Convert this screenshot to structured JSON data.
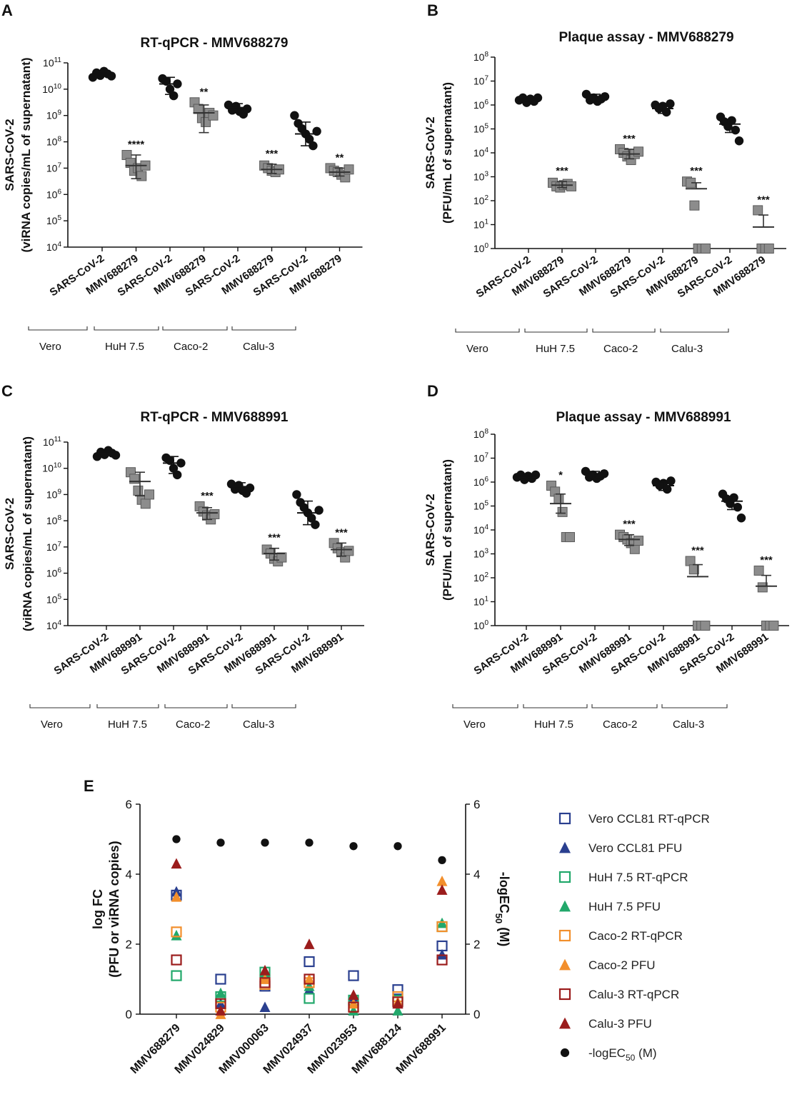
{
  "panels": {
    "A": {
      "letter": "A",
      "title": "RT-qPCR  - MMV688279",
      "ylabel_line1": "SARS-CoV-2",
      "ylabel_line2": "(viRNA copies/mL of supernatant)",
      "xtick_labels": [
        "SARS-CoV-2",
        "MMV688279",
        "SARS-CoV-2",
        "MMV688279",
        "SARS-CoV-2",
        "MMV688279",
        "SARS-CoV-2",
        "MMV688279"
      ],
      "cell_lines": [
        "Vero",
        "HuH 7.5",
        "Caco-2",
        "Calu-3"
      ]
    },
    "B": {
      "letter": "B",
      "title": "Plaque assay - MMV688279",
      "ylabel_line1": "SARS-CoV-2",
      "ylabel_line2": "(PFU/mL of supernatant)",
      "xtick_labels": [
        "SARS-CoV-2",
        "MMV688279",
        "SARS-CoV-2",
        "MMV688279",
        "SARS-CoV-2",
        "MMV688279",
        "SARS-CoV-2",
        "MMV688279"
      ],
      "cell_lines": [
        "Vero",
        "HuH 7.5",
        "Caco-2",
        "Calu-3"
      ]
    },
    "C": {
      "letter": "C",
      "title": "RT-qPCR  - MMV688991",
      "ylabel_line1": "SARS-CoV-2",
      "ylabel_line2": "(viRNA copies/mL of supernatant)",
      "xtick_labels": [
        "SARS-CoV-2",
        "MMV688991",
        "SARS-CoV-2",
        "MMV688991",
        "SARS-CoV-2",
        "MMV688991",
        "SARS-CoV-2",
        "MMV688991"
      ],
      "cell_lines": [
        "Vero",
        "HuH 7.5",
        "Caco-2",
        "Calu-3"
      ]
    },
    "D": {
      "letter": "D",
      "title": "Plaque assay - MMV688991",
      "ylabel_line1": "SARS-CoV-2",
      "ylabel_line2": "(PFU/mL of supernatant)",
      "xtick_labels": [
        "SARS-CoV-2",
        "MMV688991",
        "SARS-CoV-2",
        "MMV688991",
        "SARS-CoV-2",
        "MMV688991",
        "SARS-CoV-2",
        "MMV688991"
      ],
      "cell_lines": [
        "Vero",
        "HuH 7.5",
        "Caco-2",
        "Calu-3"
      ]
    },
    "E": {
      "letter": "E",
      "ylabel_left_line1": "log FC",
      "ylabel_left_line2": "(PFU or viRNA copies)",
      "ylabel_right": "-logEC",
      "ylabel_right_sub": "50",
      "ylabel_right_unit": "(M)"
    }
  },
  "colors": {
    "black": "#111111",
    "gray_fill": "#8c8c8c",
    "gray_stroke": "#5a5a5a",
    "vero": "#2a3f8f",
    "huh": "#22a86b",
    "caco": "#f28f2c",
    "calu": "#9b1c1c"
  },
  "chart_data": [
    {
      "panel": "A",
      "type": "scatter",
      "title": "RT-qPCR  - MMV688279",
      "ylabel": "SARS-CoV-2 (viRNA copies/mL of supernatant)",
      "yscale": "log10",
      "ylim": [
        10000,
        100000000000
      ],
      "yticks": [
        "10^4",
        "10^5",
        "10^6",
        "10^7",
        "10^8",
        "10^9",
        "10^10",
        "10^11"
      ],
      "categories": [
        "SARS-CoV-2",
        "MMV688279",
        "SARS-CoV-2",
        "MMV688279",
        "SARS-CoV-2",
        "MMV688279",
        "SARS-CoV-2",
        "MMV688279"
      ],
      "groups": [
        "Vero",
        "HuH 7.5",
        "Caco-2",
        "Calu-3"
      ],
      "series": [
        {
          "name": "Vero SARS-CoV-2",
          "marker": "circle",
          "log_values": [
            10.45,
            10.62,
            10.52,
            10.68,
            10.58,
            10.5
          ],
          "mean_log": 10.57,
          "sd_log": [
            10.5,
            10.66
          ],
          "significance": ""
        },
        {
          "name": "Vero MMV688279",
          "marker": "square",
          "log_values": [
            7.5,
            7.2,
            6.9,
            7.0,
            6.7,
            7.1
          ],
          "mean_log": 7.1,
          "sd_log": [
            6.6,
            7.5
          ],
          "significance": "****"
        },
        {
          "name": "HuH 7.5 SARS-CoV-2",
          "marker": "circle",
          "log_values": [
            10.4,
            10.3,
            10.0,
            9.75,
            10.2
          ],
          "mean_log": 10.2,
          "sd_log": [
            9.8,
            10.45
          ],
          "significance": ""
        },
        {
          "name": "HuH 7.5 MMV688279",
          "marker": "square",
          "log_values": [
            9.5,
            9.25,
            8.9,
            8.75,
            9.1,
            9.0
          ],
          "mean_log": 9.1,
          "sd_log": [
            8.35,
            9.4
          ],
          "significance": "**"
        },
        {
          "name": "Caco-2 SARS-CoV-2",
          "marker": "circle",
          "log_values": [
            9.4,
            9.2,
            9.35,
            9.15,
            9.05,
            9.25
          ],
          "mean_log": 9.3,
          "sd_log": [
            9.1,
            9.45
          ],
          "significance": ""
        },
        {
          "name": "Caco-2 MMV688279",
          "marker": "square",
          "log_values": [
            7.1,
            7.0,
            6.9,
            6.85,
            6.95
          ],
          "mean_log": 6.95,
          "sd_log": [
            6.8,
            7.15
          ],
          "significance": "***"
        },
        {
          "name": "Calu-3 SARS-CoV-2",
          "marker": "circle",
          "log_values": [
            9.0,
            8.7,
            8.5,
            8.3,
            8.1,
            7.85,
            8.4
          ],
          "mean_log": 8.3,
          "sd_log": [
            7.85,
            8.75
          ],
          "significance": ""
        },
        {
          "name": "Calu-3 MMV688279",
          "marker": "square",
          "log_values": [
            7.0,
            6.9,
            6.85,
            6.75,
            6.65,
            6.95
          ],
          "mean_log": 6.85,
          "sd_log": [
            6.7,
            7.0
          ],
          "significance": "**"
        }
      ]
    },
    {
      "panel": "B",
      "type": "scatter",
      "title": "Plaque assay - MMV688279",
      "ylabel": "SARS-CoV-2 (PFU/mL of supernatant)",
      "yscale": "log10",
      "ylim": [
        1,
        100000000
      ],
      "yticks": [
        "10^0",
        "10^1",
        "10^2",
        "10^3",
        "10^4",
        "10^5",
        "10^6",
        "10^7",
        "10^8"
      ],
      "categories": [
        "SARS-CoV-2",
        "MMV688279",
        "SARS-CoV-2",
        "MMV688279",
        "SARS-CoV-2",
        "MMV688279",
        "SARS-CoV-2",
        "MMV688279"
      ],
      "groups": [
        "Vero",
        "HuH 7.5",
        "Caco-2",
        "Calu-3"
      ],
      "series": [
        {
          "name": "Vero SARS-CoV-2",
          "marker": "circle",
          "log_values": [
            6.2,
            6.3,
            6.1,
            6.25,
            6.15,
            6.3
          ],
          "mean_log": 6.25,
          "sd_log": [
            6.15,
            6.35
          ],
          "significance": ""
        },
        {
          "name": "Vero MMV688279",
          "marker": "square",
          "log_values": [
            2.75,
            2.6,
            2.55,
            2.65,
            2.7,
            2.6
          ],
          "mean_log": 2.65,
          "sd_log": [
            2.55,
            2.8
          ],
          "significance": "***"
        },
        {
          "name": "HuH 7.5 SARS-CoV-2",
          "marker": "circle",
          "log_values": [
            6.45,
            6.2,
            6.3,
            6.15,
            6.25,
            6.35
          ],
          "mean_log": 6.3,
          "sd_log": [
            6.15,
            6.45
          ],
          "significance": ""
        },
        {
          "name": "HuH 7.5 MMV688279",
          "marker": "square",
          "log_values": [
            4.15,
            4.0,
            3.85,
            3.7,
            3.95,
            4.05
          ],
          "mean_log": 3.95,
          "sd_log": [
            3.75,
            4.15
          ],
          "significance": "***"
        },
        {
          "name": "Caco-2 SARS-CoV-2",
          "marker": "circle",
          "log_values": [
            6.0,
            5.85,
            5.95,
            5.7,
            6.05
          ],
          "mean_log": 5.85,
          "sd_log": [
            5.65,
            6.0
          ],
          "significance": ""
        },
        {
          "name": "Caco-2 MMV688279",
          "marker": "square",
          "log_values": [
            2.8,
            2.75,
            1.8,
            0,
            0,
            0
          ],
          "mean_log": 2.5,
          "sd_log": [
            2.5,
            2.75
          ],
          "significance": "***"
        },
        {
          "name": "Calu-3 SARS-CoV-2",
          "marker": "circle",
          "log_values": [
            5.5,
            5.3,
            5.1,
            5.35,
            4.95,
            4.5
          ],
          "mean_log": 5.2,
          "sd_log": [
            4.85,
            5.4
          ],
          "significance": ""
        },
        {
          "name": "Calu-3 MMV688279",
          "marker": "square",
          "log_values": [
            1.6,
            0,
            0,
            0
          ],
          "mean_log": 0.9,
          "sd_log": [
            0.9,
            1.4
          ],
          "significance": "***"
        }
      ]
    },
    {
      "panel": "C",
      "type": "scatter",
      "title": "RT-qPCR  - MMV688991",
      "ylabel": "SARS-CoV-2 (viRNA copies/mL of supernatant)",
      "yscale": "log10",
      "ylim": [
        10000,
        100000000000
      ],
      "yticks": [
        "10^4",
        "10^5",
        "10^6",
        "10^7",
        "10^8",
        "10^9",
        "10^10",
        "10^11"
      ],
      "categories": [
        "SARS-CoV-2",
        "MMV688991",
        "SARS-CoV-2",
        "MMV688991",
        "SARS-CoV-2",
        "MMV688991",
        "SARS-CoV-2",
        "MMV688991"
      ],
      "groups": [
        "Vero",
        "HuH 7.5",
        "Caco-2",
        "Calu-3"
      ],
      "series": [
        {
          "name": "Vero SARS-CoV-2",
          "marker": "circle",
          "log_values": [
            10.45,
            10.62,
            10.52,
            10.68,
            10.58,
            10.5
          ],
          "mean_log": 10.57,
          "sd_log": [
            10.5,
            10.66
          ],
          "significance": ""
        },
        {
          "name": "Vero MMV688991",
          "marker": "square",
          "log_values": [
            9.85,
            9.6,
            9.15,
            8.8,
            8.65,
            9.0
          ],
          "mean_log": 9.5,
          "sd_log": [
            8.95,
            9.85
          ],
          "significance": ""
        },
        {
          "name": "HuH 7.5 SARS-CoV-2",
          "marker": "circle",
          "log_values": [
            10.4,
            10.3,
            10.0,
            9.75,
            10.2
          ],
          "mean_log": 10.2,
          "sd_log": [
            9.8,
            10.45
          ],
          "significance": ""
        },
        {
          "name": "HuH 7.5 MMV688991",
          "marker": "square",
          "log_values": [
            8.55,
            8.35,
            8.2,
            8.05,
            8.25
          ],
          "mean_log": 8.3,
          "sd_log": [
            8.05,
            8.5
          ],
          "significance": "***"
        },
        {
          "name": "Caco-2 SARS-CoV-2",
          "marker": "circle",
          "log_values": [
            9.4,
            9.2,
            9.35,
            9.15,
            9.05,
            9.25
          ],
          "mean_log": 9.3,
          "sd_log": [
            9.1,
            9.45
          ],
          "significance": ""
        },
        {
          "name": "Caco-2 MMV688991",
          "marker": "square",
          "log_values": [
            6.9,
            6.75,
            6.55,
            6.45,
            6.6
          ],
          "mean_log": 6.75,
          "sd_log": [
            6.5,
            6.95
          ],
          "significance": "***"
        },
        {
          "name": "Calu-3 SARS-CoV-2",
          "marker": "circle",
          "log_values": [
            9.0,
            8.7,
            8.5,
            8.3,
            8.1,
            7.85,
            8.4
          ],
          "mean_log": 8.3,
          "sd_log": [
            7.85,
            8.75
          ],
          "significance": ""
        },
        {
          "name": "Calu-3 MMV688991",
          "marker": "square",
          "log_values": [
            7.15,
            6.95,
            6.8,
            6.6,
            6.85
          ],
          "mean_log": 6.9,
          "sd_log": [
            6.65,
            7.15
          ],
          "significance": "***"
        }
      ]
    },
    {
      "panel": "D",
      "type": "scatter",
      "title": "Plaque assay - MMV688991",
      "ylabel": "SARS-CoV-2 (PFU/mL of supernatant)",
      "yscale": "log10",
      "ylim": [
        1,
        100000000
      ],
      "yticks": [
        "10^0",
        "10^1",
        "10^2",
        "10^3",
        "10^4",
        "10^5",
        "10^6",
        "10^7",
        "10^8"
      ],
      "categories": [
        "SARS-CoV-2",
        "MMV688991",
        "SARS-CoV-2",
        "MMV688991",
        "SARS-CoV-2",
        "MMV688991",
        "SARS-CoV-2",
        "MMV688991"
      ],
      "groups": [
        "Vero",
        "HuH 7.5",
        "Caco-2",
        "Calu-3"
      ],
      "series": [
        {
          "name": "Vero SARS-CoV-2",
          "marker": "circle",
          "log_values": [
            6.2,
            6.3,
            6.1,
            6.25,
            6.15,
            6.3
          ],
          "mean_log": 6.25,
          "sd_log": [
            6.15,
            6.35
          ],
          "significance": ""
        },
        {
          "name": "Vero MMV688991",
          "marker": "square",
          "log_values": [
            5.85,
            5.6,
            5.3,
            4.75,
            3.7,
            3.7
          ],
          "mean_log": 5.1,
          "sd_log": [
            4.7,
            5.5
          ],
          "significance": "*"
        },
        {
          "name": "HuH 7.5 SARS-CoV-2",
          "marker": "circle",
          "log_values": [
            6.45,
            6.2,
            6.3,
            6.15,
            6.25,
            6.35
          ],
          "mean_log": 6.3,
          "sd_log": [
            6.15,
            6.45
          ],
          "significance": ""
        },
        {
          "name": "HuH 7.5 MMV688991",
          "marker": "square",
          "log_values": [
            3.8,
            3.7,
            3.6,
            3.45,
            3.2,
            3.55
          ],
          "mean_log": 3.6,
          "sd_log": [
            3.35,
            3.8
          ],
          "significance": "***"
        },
        {
          "name": "Caco-2 SARS-CoV-2",
          "marker": "circle",
          "log_values": [
            6.0,
            5.85,
            5.95,
            5.7,
            6.05
          ],
          "mean_log": 5.85,
          "sd_log": [
            5.65,
            6.0
          ],
          "significance": ""
        },
        {
          "name": "Caco-2 MMV688991",
          "marker": "square",
          "log_values": [
            2.7,
            2.35,
            0,
            0,
            0
          ],
          "mean_log": 2.05,
          "sd_log": [
            2.05,
            2.55
          ],
          "significance": "***"
        },
        {
          "name": "Calu-3 SARS-CoV-2",
          "marker": "circle",
          "log_values": [
            5.5,
            5.3,
            5.1,
            5.35,
            4.95,
            4.5
          ],
          "mean_log": 5.2,
          "sd_log": [
            4.85,
            5.4
          ],
          "significance": ""
        },
        {
          "name": "Calu-3 MMV688991",
          "marker": "square",
          "log_values": [
            2.3,
            1.6,
            0,
            0,
            0
          ],
          "mean_log": 1.65,
          "sd_log": [
            1.65,
            2.1
          ],
          "significance": "***"
        }
      ]
    },
    {
      "panel": "E",
      "type": "scatter",
      "xlabel": "",
      "ylabel": "log FC (PFU or viRNA copies)",
      "ylabel_right": "-logEC50 (M)",
      "ylim": [
        0,
        6
      ],
      "ylim_right": [
        0,
        6
      ],
      "yticks": [
        0,
        2,
        4,
        6
      ],
      "categories": [
        "MMV688279",
        "MMV024829",
        "MMV000063",
        "MMV024937",
        "MMV023953",
        "MMV688124",
        "MMV688991"
      ],
      "legend_position": "right",
      "series": [
        {
          "name": "Vero CCL81 RT-qPCR",
          "marker": "open-square",
          "color": "#2a3f8f",
          "values": [
            3.4,
            1.0,
            0.8,
            1.5,
            1.1,
            0.7,
            1.95
          ]
        },
        {
          "name": "Vero CCL81 PFU",
          "marker": "triangle",
          "color": "#2a3f8f",
          "values": [
            3.5,
            0.3,
            0.2,
            0.7,
            0.5,
            0.3,
            1.7
          ]
        },
        {
          "name": "HuH 7.5 RT-qPCR",
          "marker": "open-square",
          "color": "#22a86b",
          "values": [
            1.1,
            0.5,
            1.2,
            0.45,
            0.4,
            0.4,
            2.5
          ]
        },
        {
          "name": "HuH 7.5 PFU",
          "marker": "triangle",
          "color": "#22a86b",
          "values": [
            2.25,
            0.6,
            1.2,
            0.8,
            0.1,
            0.1,
            2.6
          ]
        },
        {
          "name": "Caco-2 RT-qPCR",
          "marker": "open-square",
          "color": "#f28f2c",
          "values": [
            2.35,
            0.2,
            0.85,
            0.9,
            0.2,
            0.5,
            2.5
          ]
        },
        {
          "name": "Caco-2 PFU",
          "marker": "triangle",
          "color": "#f28f2c",
          "values": [
            3.35,
            0.0,
            1.0,
            1.0,
            0.3,
            0.35,
            3.8
          ]
        },
        {
          "name": "Calu-3 RT-qPCR",
          "marker": "open-square",
          "color": "#9b1c1c",
          "values": [
            1.55,
            0.3,
            0.9,
            1.0,
            0.2,
            0.35,
            1.55
          ]
        },
        {
          "name": "Calu-3 PFU",
          "marker": "triangle",
          "color": "#9b1c1c",
          "values": [
            4.3,
            0.1,
            1.25,
            2.0,
            0.55,
            0.3,
            3.55
          ]
        },
        {
          "name": "-logEC50 (M)",
          "axis": "right",
          "marker": "circle",
          "color": "#111111",
          "values": [
            5.0,
            4.9,
            4.9,
            4.9,
            4.8,
            4.8,
            4.4
          ]
        }
      ]
    }
  ]
}
